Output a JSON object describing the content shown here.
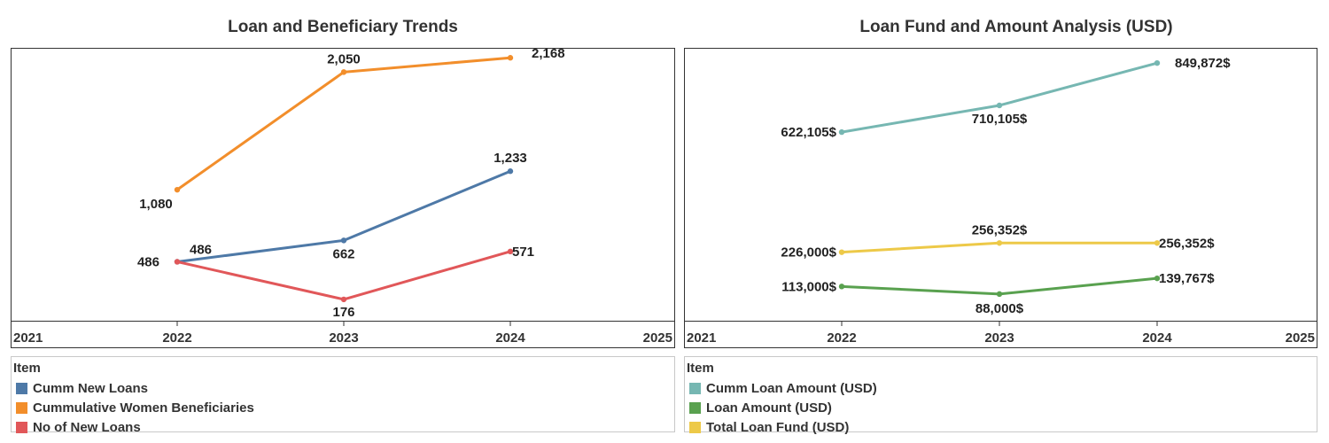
{
  "chart_data": [
    {
      "type": "line",
      "title": "Loan and Beneficiary Trends",
      "x_ticks": [
        "2021",
        "2022",
        "2023",
        "2024",
        "2025"
      ],
      "xlim": [
        2021,
        2025
      ],
      "ylim": [
        0,
        2250
      ],
      "grid": false,
      "legend_position": "bottom",
      "legend_title": "Item",
      "series": [
        {
          "name": "Cumm New Loans",
          "color": "#4e79a7",
          "x": [
            2022,
            2023,
            2024
          ],
          "values": [
            486,
            662,
            1233
          ],
          "labels": [
            "486",
            "662",
            "1,233"
          ]
        },
        {
          "name": "Cummulative Women Beneficiaries",
          "color": "#f28e2b",
          "x": [
            2022,
            2023,
            2024
          ],
          "values": [
            1080,
            2050,
            2168
          ],
          "labels": [
            "1,080",
            "2,050",
            "2,168"
          ]
        },
        {
          "name": "No of New Loans",
          "color": "#e15759",
          "x": [
            2022,
            2023,
            2024
          ],
          "values": [
            486,
            176,
            571
          ],
          "labels": [
            "486",
            "176",
            "571"
          ]
        }
      ]
    },
    {
      "type": "line",
      "title": "Loan Fund and Amount Analysis (USD)",
      "x_ticks": [
        "2021",
        "2022",
        "2023",
        "2024",
        "2025"
      ],
      "xlim": [
        2021,
        2025
      ],
      "ylim": [
        0,
        900000
      ],
      "grid": false,
      "legend_position": "bottom",
      "legend_title": "Item",
      "series": [
        {
          "name": "Cumm Loan Amount (USD)",
          "color": "#76b7b2",
          "x": [
            2022,
            2023,
            2024
          ],
          "values": [
            622105,
            710105,
            849872
          ],
          "labels": [
            "622,105$",
            "710,105$",
            "849,872$"
          ]
        },
        {
          "name": "Loan Amount (USD)",
          "color": "#59a14f",
          "x": [
            2022,
            2023,
            2024
          ],
          "values": [
            113000,
            88000,
            139767
          ],
          "labels": [
            "113,000$",
            "88,000$",
            "139,767$"
          ]
        },
        {
          "name": "Total Loan Fund (USD)",
          "color": "#edc948",
          "x": [
            2022,
            2023,
            2024
          ],
          "values": [
            226000,
            256352,
            256352
          ],
          "labels": [
            "226,000$",
            "256,352$",
            "256,352$"
          ]
        }
      ]
    }
  ]
}
